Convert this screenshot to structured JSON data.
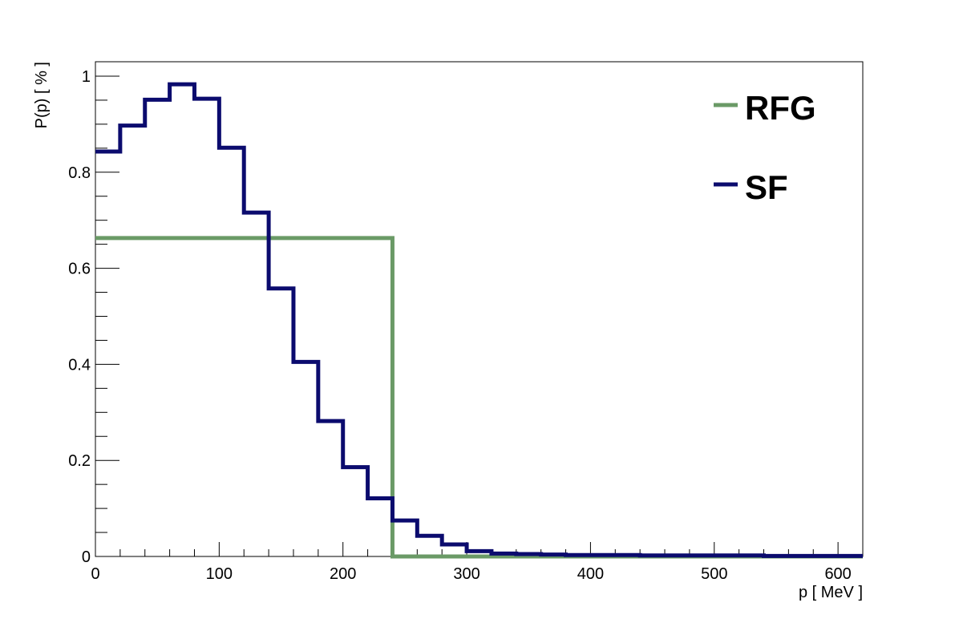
{
  "chart_data": {
    "type": "line",
    "style": "step-histogram",
    "xlabel": "p  [ MeV ]",
    "ylabel": "P(p)  [ % ]",
    "xlim": [
      0,
      620
    ],
    "ylim": [
      0,
      1.03
    ],
    "x_major_ticks": [
      0,
      100,
      200,
      300,
      400,
      500,
      600
    ],
    "x_tick_labels": [
      "0",
      "100",
      "200",
      "300",
      "400",
      "500",
      "600"
    ],
    "y_major_ticks": [
      0,
      0.2,
      0.4,
      0.6,
      0.8,
      1
    ],
    "y_tick_labels": [
      "0",
      "0.2",
      "0.4",
      "0.6",
      "0.8",
      "1"
    ],
    "grid": false,
    "legend_position": "top-right",
    "series": [
      {
        "name": "RFG",
        "color": "#6a9a66",
        "bin_edges": [
          0,
          240,
          620
        ],
        "values": [
          0.663,
          0.0
        ]
      },
      {
        "name": "SF",
        "color": "#0b0b6e",
        "bin_edges": [
          0,
          20,
          40,
          60,
          80,
          100,
          120,
          140,
          160,
          180,
          200,
          220,
          240,
          260,
          280,
          300,
          320,
          340,
          360,
          380,
          400,
          420,
          440,
          460,
          480,
          500,
          520,
          540,
          560,
          580,
          600,
          620
        ],
        "values": [
          0.843,
          0.897,
          0.951,
          0.983,
          0.953,
          0.851,
          0.716,
          0.558,
          0.405,
          0.282,
          0.186,
          0.121,
          0.075,
          0.043,
          0.025,
          0.011,
          0.006,
          0.005,
          0.004,
          0.003,
          0.003,
          0.003,
          0.002,
          0.002,
          0.002,
          0.002,
          0.002,
          0.001,
          0.001,
          0.001,
          0.001
        ]
      }
    ]
  }
}
